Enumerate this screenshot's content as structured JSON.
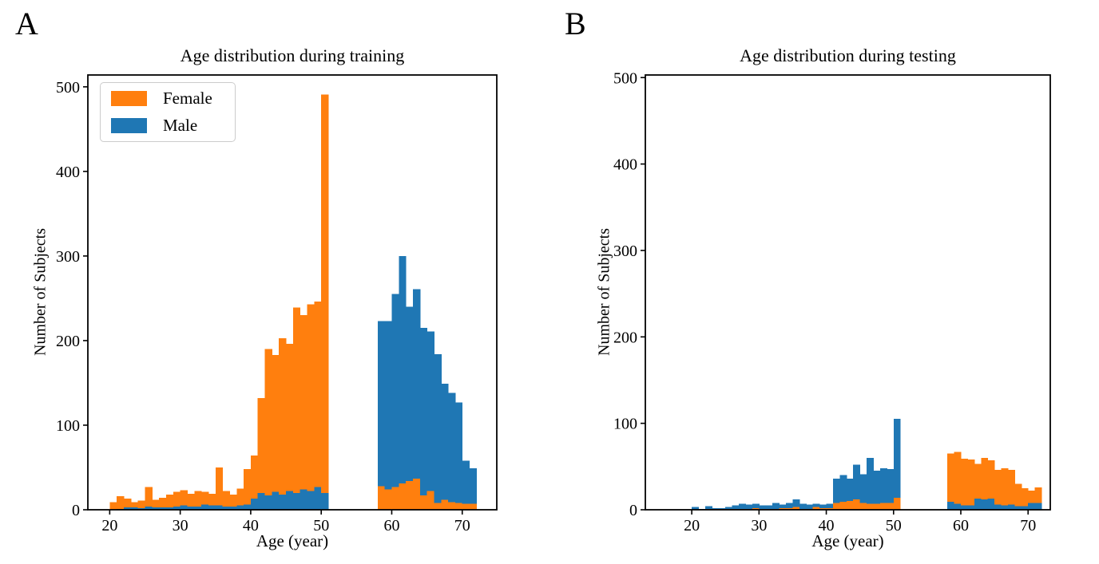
{
  "colors": {
    "female": "#ff7f0e",
    "male": "#1f77b4",
    "axis": "#000000",
    "background": "#ffffff",
    "legend_border": "#cccccc"
  },
  "chart_data": [
    {
      "panel_label": "A",
      "type": "bar",
      "style": "overlaid-histogram",
      "title": "Age distribution during training",
      "xlabel": "Age (year)",
      "ylabel": "Number of Subjects",
      "x_ticks": [
        20,
        30,
        40,
        50,
        60,
        70
      ],
      "y_ticks": [
        0,
        100,
        200,
        300,
        400,
        500
      ],
      "xlim": [
        16.9,
        74.9
      ],
      "ylim": [
        0,
        500
      ],
      "ylim_render": [
        0,
        514
      ],
      "bin_width": 1,
      "legend_position": "upper left",
      "legend": [
        {
          "label": "Female",
          "color": "#ff7f0e"
        },
        {
          "label": "Male",
          "color": "#1f77b4"
        }
      ],
      "bin_keys": {
        "a": "age bin start (years)",
        "f": "female count",
        "m": "male count"
      },
      "bins": [
        {
          "a": 20,
          "f": 9,
          "m": 0
        },
        {
          "a": 21,
          "f": 16,
          "m": 1
        },
        {
          "a": 22,
          "f": 13,
          "m": 3
        },
        {
          "a": 23,
          "f": 9,
          "m": 3
        },
        {
          "a": 24,
          "f": 11,
          "m": 2
        },
        {
          "a": 25,
          "f": 27,
          "m": 4
        },
        {
          "a": 26,
          "f": 12,
          "m": 3
        },
        {
          "a": 27,
          "f": 14,
          "m": 3
        },
        {
          "a": 28,
          "f": 18,
          "m": 3
        },
        {
          "a": 29,
          "f": 21,
          "m": 4
        },
        {
          "a": 30,
          "f": 23,
          "m": 5
        },
        {
          "a": 31,
          "f": 19,
          "m": 4
        },
        {
          "a": 32,
          "f": 22,
          "m": 4
        },
        {
          "a": 33,
          "f": 21,
          "m": 6
        },
        {
          "a": 34,
          "f": 19,
          "m": 5
        },
        {
          "a": 35,
          "f": 50,
          "m": 5
        },
        {
          "a": 36,
          "f": 22,
          "m": 4
        },
        {
          "a": 37,
          "f": 18,
          "m": 4
        },
        {
          "a": 38,
          "f": 25,
          "m": 5
        },
        {
          "a": 39,
          "f": 48,
          "m": 6
        },
        {
          "a": 40,
          "f": 64,
          "m": 13
        },
        {
          "a": 41,
          "f": 132,
          "m": 20
        },
        {
          "a": 42,
          "f": 190,
          "m": 17
        },
        {
          "a": 43,
          "f": 183,
          "m": 21
        },
        {
          "a": 44,
          "f": 203,
          "m": 18
        },
        {
          "a": 45,
          "f": 196,
          "m": 22
        },
        {
          "a": 46,
          "f": 239,
          "m": 20
        },
        {
          "a": 47,
          "f": 230,
          "m": 24
        },
        {
          "a": 48,
          "f": 243,
          "m": 22
        },
        {
          "a": 49,
          "f": 246,
          "m": 27
        },
        {
          "a": 50,
          "f": 491,
          "m": 20
        },
        {
          "a": 58,
          "f": 28,
          "m": 223
        },
        {
          "a": 59,
          "f": 24,
          "m": 223
        },
        {
          "a": 60,
          "f": 27,
          "m": 255
        },
        {
          "a": 61,
          "f": 31,
          "m": 300
        },
        {
          "a": 62,
          "f": 34,
          "m": 240
        },
        {
          "a": 63,
          "f": 37,
          "m": 261
        },
        {
          "a": 64,
          "f": 17,
          "m": 215
        },
        {
          "a": 65,
          "f": 22,
          "m": 211
        },
        {
          "a": 66,
          "f": 8,
          "m": 184
        },
        {
          "a": 67,
          "f": 12,
          "m": 149
        },
        {
          "a": 68,
          "f": 9,
          "m": 138
        },
        {
          "a": 69,
          "f": 8,
          "m": 127
        },
        {
          "a": 70,
          "f": 7,
          "m": 58
        },
        {
          "a": 71,
          "f": 7,
          "m": 49
        }
      ]
    },
    {
      "panel_label": "B",
      "type": "bar",
      "style": "overlaid-histogram",
      "title": "Age distribution during testing",
      "xlabel": "Age (year)",
      "ylabel": "Number of Subjects",
      "x_ticks": [
        20,
        30,
        40,
        50,
        60,
        70
      ],
      "y_ticks": [
        0,
        100,
        200,
        300,
        400,
        500
      ],
      "xlim": [
        13.1,
        73.3
      ],
      "ylim": [
        0,
        500
      ],
      "ylim_render": [
        0,
        503
      ],
      "bin_width": 1,
      "legend": [],
      "bin_keys": {
        "a": "age bin start (years)",
        "f": "female count",
        "m": "male count"
      },
      "bins": [
        {
          "a": 20,
          "f": 0,
          "m": 3
        },
        {
          "a": 21,
          "f": 0,
          "m": 1
        },
        {
          "a": 22,
          "f": 1,
          "m": 4
        },
        {
          "a": 23,
          "f": 1,
          "m": 2
        },
        {
          "a": 24,
          "f": 1,
          "m": 2
        },
        {
          "a": 25,
          "f": 1,
          "m": 3
        },
        {
          "a": 26,
          "f": 1,
          "m": 5
        },
        {
          "a": 27,
          "f": 1,
          "m": 7
        },
        {
          "a": 28,
          "f": 1,
          "m": 6
        },
        {
          "a": 29,
          "f": 2,
          "m": 7
        },
        {
          "a": 30,
          "f": 1,
          "m": 5
        },
        {
          "a": 31,
          "f": 1,
          "m": 5
        },
        {
          "a": 32,
          "f": 1,
          "m": 8
        },
        {
          "a": 33,
          "f": 2,
          "m": 6
        },
        {
          "a": 34,
          "f": 2,
          "m": 8
        },
        {
          "a": 35,
          "f": 3,
          "m": 12
        },
        {
          "a": 36,
          "f": 1,
          "m": 7
        },
        {
          "a": 37,
          "f": 1,
          "m": 6
        },
        {
          "a": 38,
          "f": 3,
          "m": 7
        },
        {
          "a": 39,
          "f": 2,
          "m": 6
        },
        {
          "a": 40,
          "f": 2,
          "m": 7
        },
        {
          "a": 41,
          "f": 8,
          "m": 36
        },
        {
          "a": 42,
          "f": 9,
          "m": 40
        },
        {
          "a": 43,
          "f": 10,
          "m": 36
        },
        {
          "a": 44,
          "f": 12,
          "m": 52
        },
        {
          "a": 45,
          "f": 8,
          "m": 41
        },
        {
          "a": 46,
          "f": 7,
          "m": 60
        },
        {
          "a": 47,
          "f": 7,
          "m": 45
        },
        {
          "a": 48,
          "f": 8,
          "m": 48
        },
        {
          "a": 49,
          "f": 8,
          "m": 47
        },
        {
          "a": 50,
          "f": 14,
          "m": 105
        },
        {
          "a": 58,
          "f": 65,
          "m": 9
        },
        {
          "a": 59,
          "f": 67,
          "m": 7
        },
        {
          "a": 60,
          "f": 59,
          "m": 5
        },
        {
          "a": 61,
          "f": 58,
          "m": 5
        },
        {
          "a": 62,
          "f": 53,
          "m": 13
        },
        {
          "a": 63,
          "f": 60,
          "m": 12
        },
        {
          "a": 64,
          "f": 57,
          "m": 13
        },
        {
          "a": 65,
          "f": 46,
          "m": 6
        },
        {
          "a": 66,
          "f": 48,
          "m": 5
        },
        {
          "a": 67,
          "f": 46,
          "m": 6
        },
        {
          "a": 68,
          "f": 30,
          "m": 4
        },
        {
          "a": 69,
          "f": 25,
          "m": 4
        },
        {
          "a": 70,
          "f": 22,
          "m": 8
        },
        {
          "a": 71,
          "f": 26,
          "m": 8
        }
      ]
    }
  ]
}
